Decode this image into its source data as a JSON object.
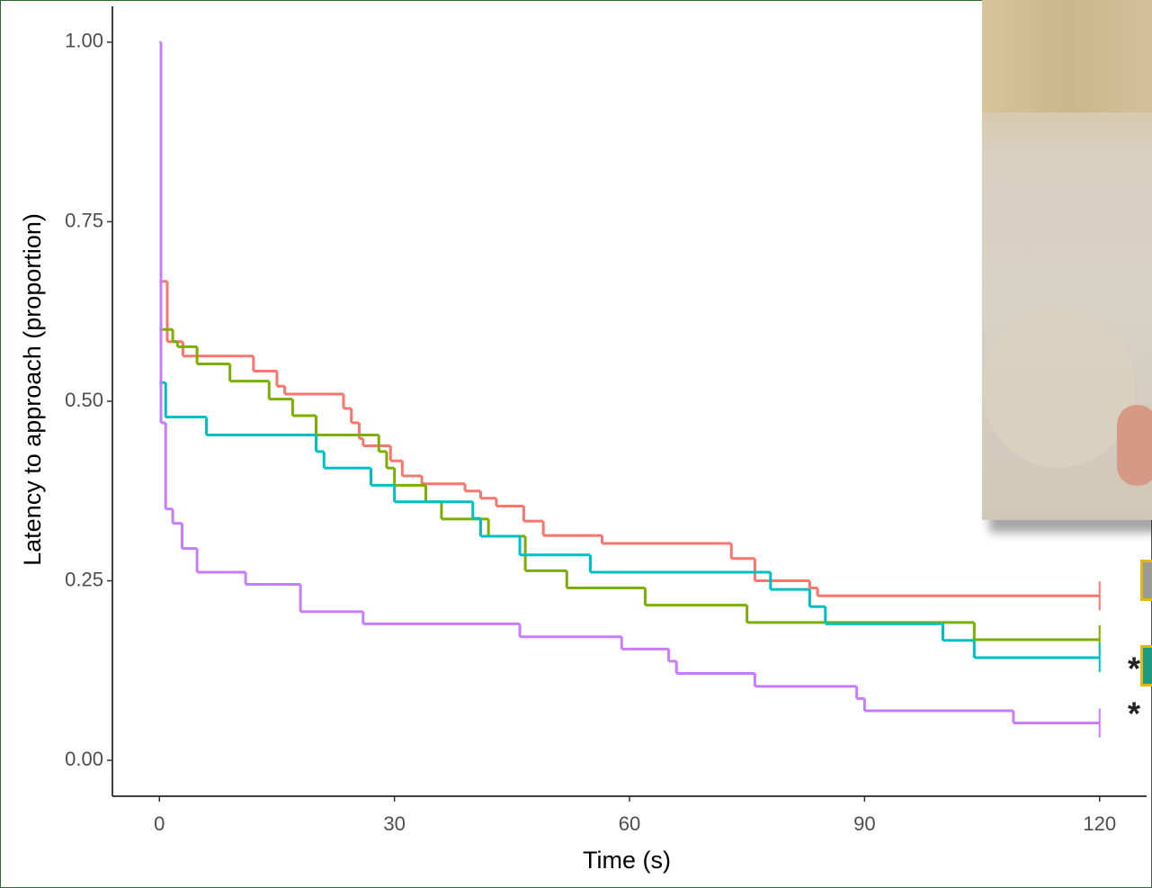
{
  "chart_data": {
    "type": "line",
    "step": true,
    "xlabel": "Time (s)",
    "ylabel": "Latency to approach (proportion)",
    "xlim": [
      -6,
      126
    ],
    "ylim": [
      -0.05,
      1.05
    ],
    "xticks": [
      0,
      30,
      60,
      90,
      120
    ],
    "yticks": [
      {
        "value": 0,
        "label": "0.00"
      },
      {
        "value": 0.25,
        "label": "0.25"
      },
      {
        "value": 0.5,
        "label": "0.50"
      },
      {
        "value": 0.75,
        "label": "0.75"
      },
      {
        "value": 1,
        "label": "1.00"
      }
    ],
    "grid": false,
    "series": [
      {
        "color": "#F8766D",
        "x": [
          0,
          1,
          3,
          12,
          15,
          16,
          23.5,
          24.5,
          25.5,
          26,
          29.5,
          31,
          33.5,
          39,
          41,
          43,
          46.5,
          49,
          56.5,
          73,
          76,
          83,
          84,
          120
        ],
        "values": [
          0.667,
          0.583,
          0.563,
          0.542,
          0.521,
          0.51,
          0.49,
          0.47,
          0.448,
          0.438,
          0.417,
          0.396,
          0.385,
          0.375,
          0.365,
          0.354,
          0.333,
          0.313,
          0.302,
          0.281,
          0.25,
          0.24,
          0.229,
          0.229
        ]
      },
      {
        "color": "#7CAE00",
        "x": [
          0,
          1.7,
          2.3,
          4.8,
          9,
          14,
          17,
          20,
          28,
          29,
          30,
          34,
          36,
          42,
          46.7,
          52,
          62,
          75,
          104,
          120
        ],
        "values": [
          0.6,
          0.583,
          0.576,
          0.552,
          0.528,
          0.503,
          0.48,
          0.453,
          0.43,
          0.407,
          0.383,
          0.36,
          0.336,
          0.312,
          0.264,
          0.24,
          0.216,
          0.192,
          0.168,
          0.168
        ]
      },
      {
        "color": "#00BFC4",
        "x": [
          0,
          0.8,
          6,
          20,
          21,
          27,
          30,
          40,
          41,
          46,
          55,
          78,
          83,
          85,
          100,
          104,
          120
        ],
        "values": [
          0.526,
          0.478,
          0.453,
          0.43,
          0.407,
          0.383,
          0.36,
          0.337,
          0.312,
          0.286,
          0.262,
          0.238,
          0.214,
          0.19,
          0.167,
          0.143,
          0.143
        ]
      },
      {
        "color": "#C77CFF",
        "x": [
          0,
          0.2,
          0.8,
          1.7,
          2.9,
          4.8,
          11,
          18,
          26,
          46,
          59,
          65,
          66,
          76,
          89,
          90,
          109,
          120
        ],
        "values": [
          1.0,
          0.47,
          0.35,
          0.33,
          0.295,
          0.262,
          0.245,
          0.207,
          0.19,
          0.172,
          0.155,
          0.138,
          0.121,
          0.103,
          0.086,
          0.069,
          0.052,
          0.052
        ]
      }
    ],
    "annotations": [
      "*",
      "*"
    ]
  }
}
